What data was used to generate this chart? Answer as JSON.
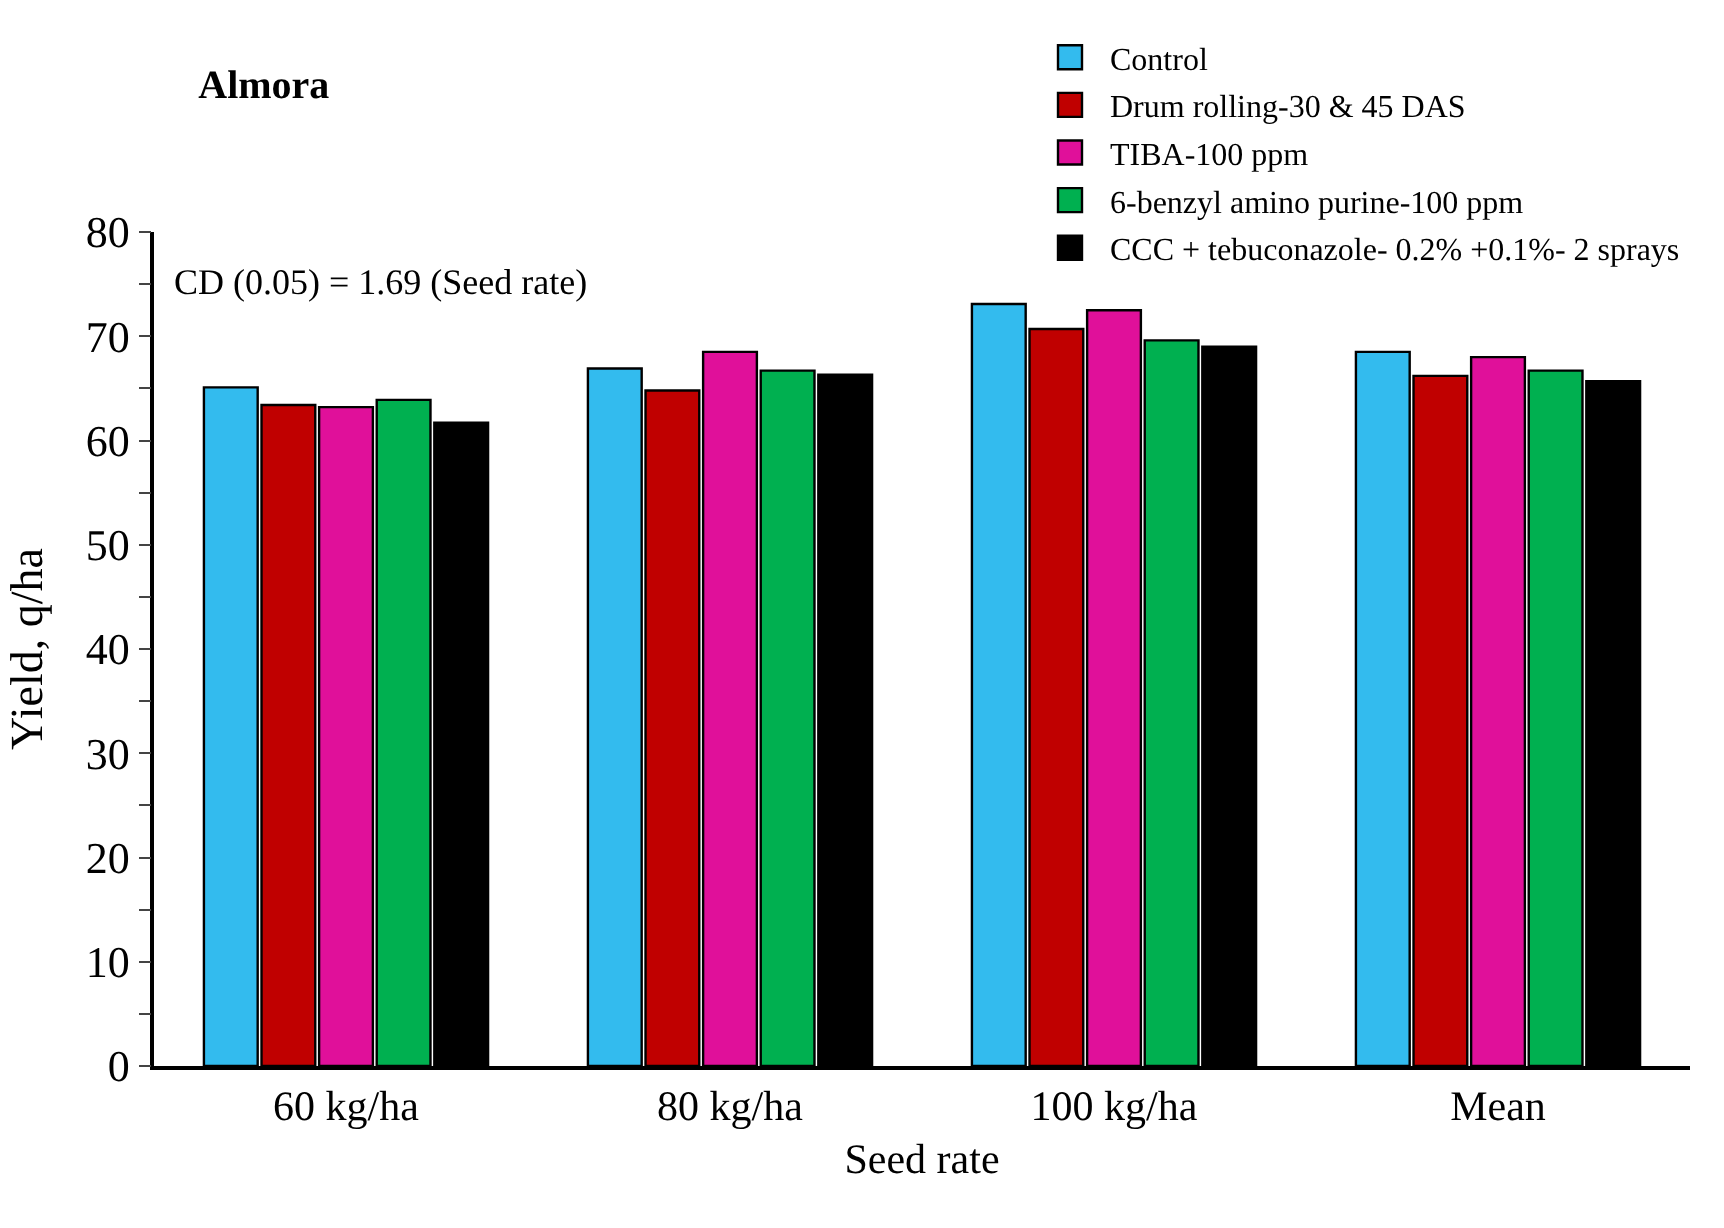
{
  "chart_data": {
    "type": "bar",
    "title": "Almora",
    "xlabel": "Seed rate",
    "ylabel": "Yield, q/ha",
    "categories": [
      "60 kg/ha",
      "80 kg/ha",
      "100 kg/ha",
      "Mean"
    ],
    "series": [
      {
        "name": "Control",
        "color": "#33bbee",
        "values": [
          65.1,
          66.9,
          73.1,
          68.5
        ]
      },
      {
        "name": "Drum rolling-30 & 45 DAS",
        "color": "#c00000",
        "values": [
          63.4,
          64.8,
          70.7,
          66.2
        ]
      },
      {
        "name": "TIBA-100 ppm",
        "color": "#e0109a",
        "values": [
          63.2,
          68.5,
          72.5,
          68.0
        ]
      },
      {
        "name": "6-benzyl amino purine-100 ppm",
        "color": "#00b050",
        "values": [
          63.9,
          66.7,
          69.6,
          66.7
        ]
      },
      {
        "name": "CCC + tebuconazole- 0.2% +0.1%- 2 sprays",
        "color": "#000000",
        "values": [
          61.7,
          66.3,
          69.0,
          65.7
        ]
      }
    ],
    "ylim": [
      0,
      80
    ],
    "yticks": [
      0,
      {
        "value": 5,
        "label": null
      },
      10,
      {
        "value": 15,
        "label": null
      },
      20,
      {
        "value": 25,
        "label": null
      },
      30,
      {
        "value": 35,
        "label": null
      },
      40,
      {
        "value": 45,
        "label": null
      },
      50,
      {
        "value": 55,
        "label": null
      },
      60,
      {
        "value": 65,
        "label": null
      },
      70,
      {
        "value": 75,
        "label": null
      },
      80
    ],
    "annotations": [
      "CD (0.05) = 1.69 (Seed rate)"
    ],
    "legend": "top right",
    "grid": false
  }
}
